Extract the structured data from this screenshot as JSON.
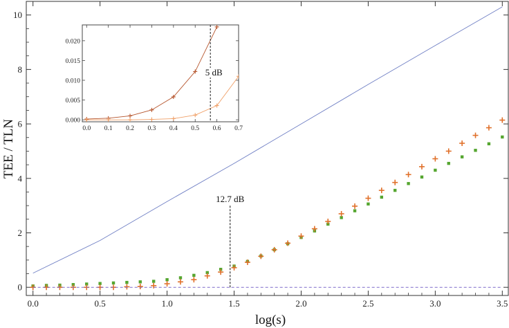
{
  "chart_data": [
    {
      "type": "line",
      "xlabel": "log(s)",
      "ylabel": "TEE / TLN",
      "xlim": [
        -0.05,
        3.55
      ],
      "ylim": [
        -0.3,
        10.5
      ],
      "xticks": [
        "0.0",
        "0.5",
        "1.0",
        "1.5",
        "2.0",
        "2.5",
        "3.0",
        "3.5"
      ],
      "yticks": [
        "0",
        "2",
        "4",
        "6",
        "8",
        "10"
      ],
      "series": [
        {
          "style": "line",
          "color": "#6f7fc4",
          "x": [
            0.0,
            0.5,
            1.0,
            1.5,
            2.0,
            2.5,
            3.0,
            3.5
          ],
          "values": [
            0.52,
            1.72,
            3.15,
            4.55,
            6.0,
            7.45,
            8.88,
            10.3
          ]
        },
        {
          "style": "square-markers",
          "color": "#55a630",
          "x": [
            0.0,
            0.1,
            0.2,
            0.3,
            0.4,
            0.5,
            0.6,
            0.7,
            0.8,
            0.9,
            1.0,
            1.1,
            1.2,
            1.3,
            1.4,
            1.5,
            1.6,
            1.7,
            1.8,
            1.9,
            2.0,
            2.1,
            2.2,
            2.3,
            2.4,
            2.5,
            2.6,
            2.7,
            2.8,
            2.9,
            3.0,
            3.1,
            3.2,
            3.3,
            3.4,
            3.5
          ],
          "values": [
            0.05,
            0.07,
            0.08,
            0.1,
            0.12,
            0.14,
            0.16,
            0.18,
            0.2,
            0.22,
            0.28,
            0.35,
            0.44,
            0.54,
            0.66,
            0.78,
            0.95,
            1.15,
            1.38,
            1.6,
            1.83,
            2.07,
            2.32,
            2.56,
            2.81,
            3.06,
            3.31,
            3.56,
            3.81,
            4.05,
            4.3,
            4.55,
            4.79,
            5.03,
            5.27,
            5.52
          ]
        },
        {
          "style": "plus-markers",
          "color": "#e0702a",
          "x": [
            0.0,
            0.1,
            0.2,
            0.3,
            0.4,
            0.5,
            0.6,
            0.7,
            0.8,
            0.9,
            1.0,
            1.1,
            1.2,
            1.3,
            1.4,
            1.5,
            1.6,
            1.7,
            1.8,
            1.9,
            2.0,
            2.1,
            2.2,
            2.3,
            2.4,
            2.5,
            2.6,
            2.7,
            2.8,
            2.9,
            3.0,
            3.1,
            3.2,
            3.3,
            3.4,
            3.5
          ],
          "values": [
            0.0,
            0.0,
            0.0,
            0.0,
            0.0,
            0.0,
            0.0,
            0.02,
            0.03,
            0.06,
            0.13,
            0.2,
            0.28,
            0.42,
            0.56,
            0.72,
            0.92,
            1.14,
            1.38,
            1.62,
            1.88,
            2.15,
            2.42,
            2.7,
            2.98,
            3.27,
            3.56,
            3.85,
            4.14,
            4.43,
            4.72,
            5.0,
            5.29,
            5.58,
            5.86,
            6.14
          ]
        },
        {
          "style": "dashed-line",
          "color": "#7b68c9",
          "x": [
            0.0,
            3.5
          ],
          "values": [
            0.0,
            0.0
          ]
        }
      ],
      "annotations": [
        {
          "text": "12.7 dB",
          "x": 1.47,
          "y_top": 3.0
        }
      ]
    },
    {
      "type": "line",
      "inset": true,
      "xlim": [
        -0.02,
        0.7
      ],
      "ylim": [
        -0.0005,
        0.024
      ],
      "xticks": [
        "0.0",
        "0.1",
        "0.2",
        "0.3",
        "0.4",
        "0.5",
        "0.6",
        "0.7"
      ],
      "yticks": [
        "0.000",
        "0.005",
        "0.010",
        "0.015",
        "0.020"
      ],
      "series": [
        {
          "style": "plus-line",
          "color": "#b5532a",
          "x": [
            0.0,
            0.1,
            0.2,
            0.3,
            0.4,
            0.5,
            0.6
          ],
          "values": [
            0.0002,
            0.0004,
            0.001,
            0.0025,
            0.0058,
            0.0122,
            0.0235
          ]
        },
        {
          "style": "plus-line",
          "color": "#f0a068",
          "x": [
            0.0,
            0.1,
            0.2,
            0.3,
            0.4,
            0.5,
            0.6,
            0.7
          ],
          "values": [
            0.0,
            0.0,
            0.0,
            0.0001,
            0.0003,
            0.0012,
            0.0036,
            0.011
          ]
        }
      ],
      "annotations": [
        {
          "text": "5 dB",
          "x": 0.57
        }
      ]
    }
  ]
}
